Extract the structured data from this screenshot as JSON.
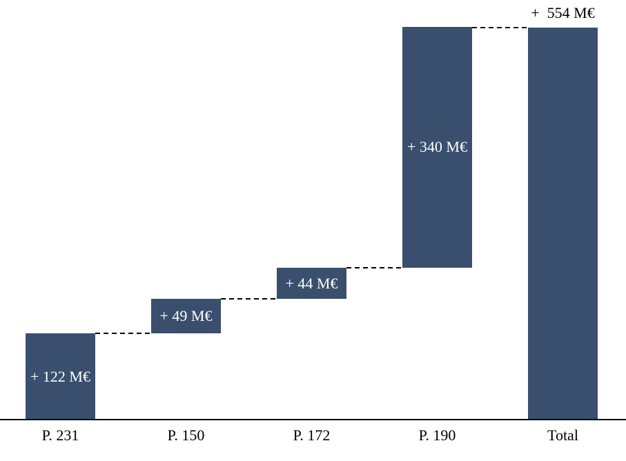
{
  "chart_data": {
    "type": "bar",
    "subtype": "waterfall",
    "title": "",
    "xlabel": "",
    "ylabel": "",
    "categories": [
      "P. 231",
      "P. 150",
      "P. 172",
      "P. 190",
      "Total"
    ],
    "values": [
      122,
      49,
      44,
      340,
      554
    ],
    "is_total": [
      false,
      false,
      false,
      false,
      true
    ],
    "bar_labels": [
      "+ 122 M€",
      "+ 49 M€",
      "+ 44 M€",
      "+ 340 M€",
      "+  554 M€"
    ],
    "cumulative_starts": [
      0,
      122,
      171,
      215,
      0
    ],
    "unit": "M€",
    "ylim": [
      0,
      554
    ],
    "grid": "off",
    "legend": "none",
    "connector_style": "dashed",
    "colors": {
      "bar": "#3A4F6E",
      "in_bar_label": "#FFFFFF",
      "total_label": "#000000",
      "axis": "#000000",
      "background": "#FFFFFF",
      "connector": "#000000"
    }
  }
}
